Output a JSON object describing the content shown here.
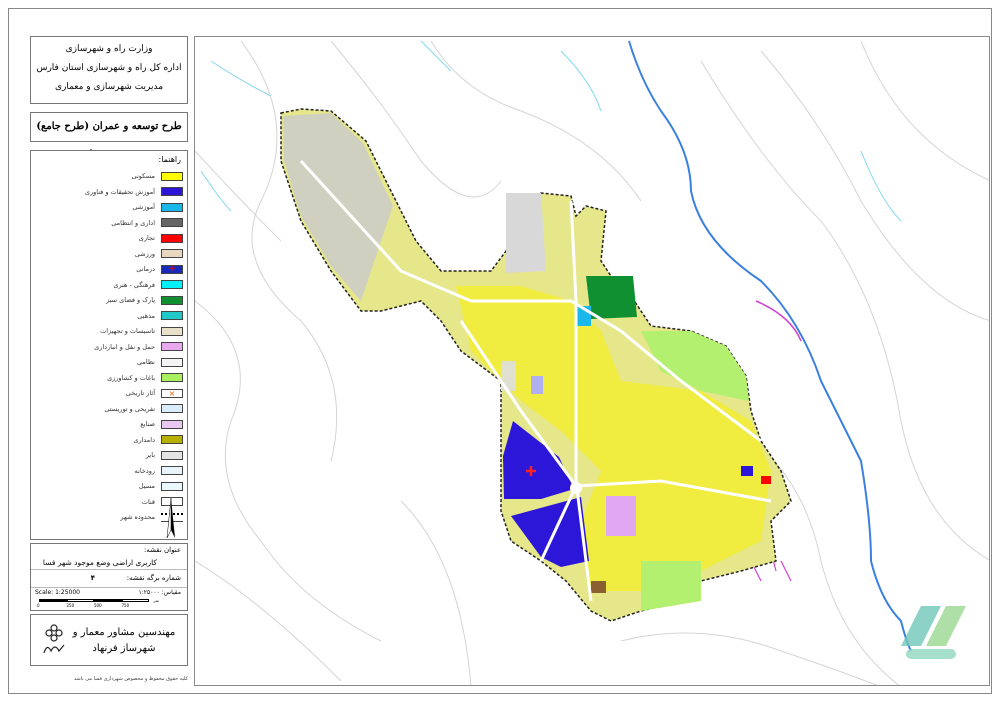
{
  "org": {
    "line1": "وزارت راه و شهرسازی",
    "line2": "اداره کل راه و شهرسازی استان فارس",
    "line3": "مدیریت شهرسازی و معماری"
  },
  "project_title": "طرح توسعه و عمران (طرح جامع) شهر فسا",
  "legend": {
    "title": "راهنما:",
    "items": [
      {
        "label": "مسکونی",
        "color": "#ffff00"
      },
      {
        "label": "آموزش تحقیقات و فناوری",
        "color": "#2c17d8"
      },
      {
        "label": "آموزشی",
        "color": "#1ab8ea"
      },
      {
        "label": "اداری و انتظامی",
        "color": "#666666"
      },
      {
        "label": "تجاری",
        "color": "#ff0000"
      },
      {
        "label": "ورزشی",
        "color": "#e8d8c0"
      },
      {
        "label": "درمانی",
        "color": "#1a2ab8"
      },
      {
        "label": "فرهنگی - هنری",
        "color": "#00f0f8"
      },
      {
        "label": "پارک و فضای سبز",
        "color": "#109030"
      },
      {
        "label": "مذهبی",
        "color": "#20c8c8"
      },
      {
        "label": "تاسیسات و تجهیزات",
        "color": "#e8e0c8"
      },
      {
        "label": "حمل و نقل و انبارداری",
        "color": "#e8a8f0"
      },
      {
        "label": "نظامی",
        "color": "#f4f4f4"
      },
      {
        "label": "باغات و کشاورزی",
        "color": "#a8f060"
      },
      {
        "label": "آثار تاریخی",
        "color": "#ffffff"
      },
      {
        "label": "تفریحی و توریستی",
        "color": "#d8ecfc"
      },
      {
        "label": "صنایع",
        "color": "#e8c8f0"
      },
      {
        "label": "دامداری",
        "color": "#b8b000"
      },
      {
        "label": "بایر",
        "color": "#e4e4e4"
      },
      {
        "label": "رودخانه",
        "color": "#e8f4fc"
      },
      {
        "label": "مسیل",
        "color": "#e8f8fc"
      },
      {
        "label": "قنات",
        "color": "#ffffff"
      },
      {
        "label": "محدوده شهر",
        "color": "#ffffff"
      }
    ]
  },
  "info": {
    "map_title_label": "عنوان نقشه:",
    "map_title": "کاربری اراضی وضع موجود شهر فسا",
    "sheet_label": "شماره برگه نقشه:",
    "sheet_number": "۴",
    "scale_fa": "مقیاس: ۱:۲۵۰۰۰",
    "scale_en": "Scale: 1:25000",
    "scale_ticks": [
      "0",
      "250",
      "500",
      "750"
    ],
    "scale_unit": "متر"
  },
  "company": "مهندسین مشاور معمار و شهرساز فرنهاد",
  "footer": "کلیه حقوق محفوظ و مخصوص شهرداری فسا می باشد"
}
